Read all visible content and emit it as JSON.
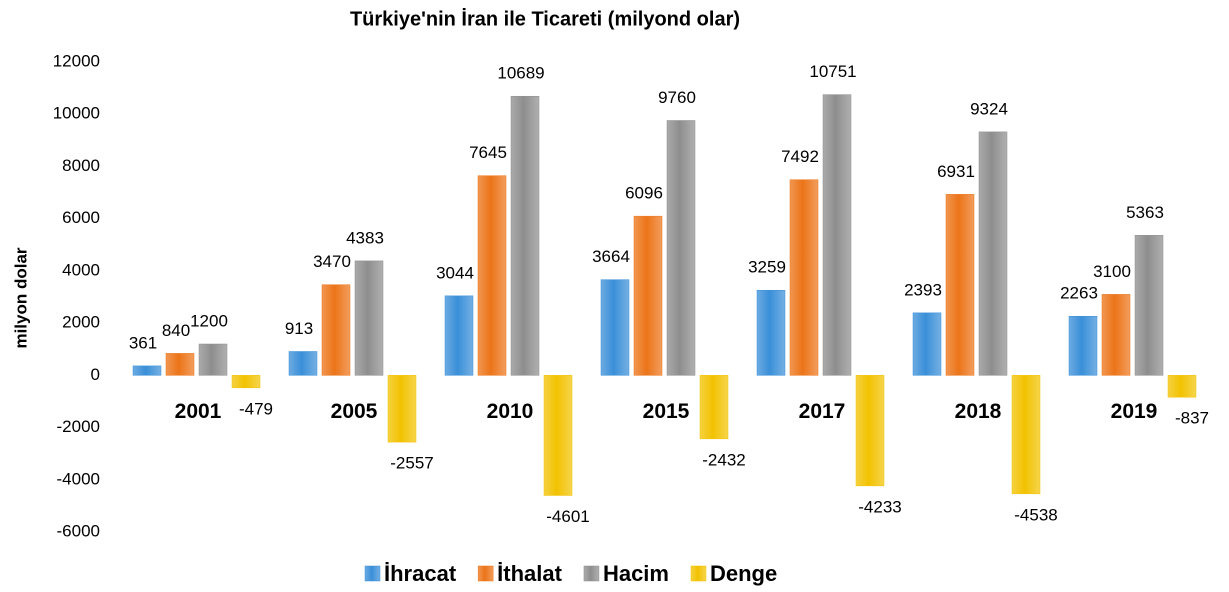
{
  "chart_data": {
    "type": "bar",
    "title": "Türkiye'nin İran ile Ticareti (milyond olar)",
    "y_label": "milyon dolar",
    "categories": [
      "2001",
      "2005",
      "2010",
      "2015",
      "2017",
      "2018",
      "2019"
    ],
    "series": [
      {
        "name": "İhracat",
        "color": "#3a8fd8",
        "values": [
          361,
          913,
          3044,
          3664,
          3259,
          2393,
          2263
        ]
      },
      {
        "name": "İthalat",
        "color": "#ec7418",
        "values": [
          840,
          3470,
          7645,
          6096,
          7492,
          6931,
          3100
        ]
      },
      {
        "name": "Hacim",
        "color": "#8e8e8e",
        "values": [
          1200,
          4383,
          10689,
          9760,
          10751,
          9324,
          5363
        ]
      },
      {
        "name": "Denge",
        "color": "#f2c200",
        "values": [
          -479,
          -2557,
          -4601,
          -2432,
          -4233,
          -4538,
          -837
        ]
      }
    ],
    "ylim": [
      -6000,
      12000
    ],
    "yticks": [
      -6000,
      -4000,
      -2000,
      0,
      2000,
      4000,
      6000,
      8000,
      10000,
      12000
    ],
    "grid": false,
    "legend": "bottom"
  }
}
